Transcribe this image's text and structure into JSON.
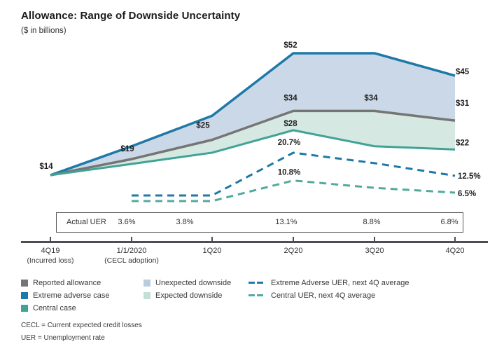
{
  "title": "Allowance: Range of Downside Uncertainty",
  "subtitle": "($ in billions)",
  "colors": {
    "extreme_adverse": "#1e79a7",
    "reported": "#757575",
    "central": "#3fa396",
    "central_uer_dash": "#52a99d",
    "unexpected_fill": "#cbd8e8",
    "expected_fill": "#d6e8e2",
    "axis": "#4d4e53",
    "label_text": "#1f1f1f"
  },
  "chart_data": {
    "type": "area",
    "title": "Allowance: Range of Downside Uncertainty",
    "ylabel": "$ in billions",
    "grid": false,
    "legend_position": "bottom",
    "categories": [
      "4Q19",
      "1/1/2020",
      "1Q20",
      "2Q20",
      "3Q20",
      "4Q20"
    ],
    "series": [
      {
        "id": "extreme_adverse_case",
        "name": "Extreme adverse case",
        "type": "line",
        "line": "solid",
        "unit": "billions_usd",
        "color": "#1e79a7",
        "values": [
          14,
          23,
          32.5,
          52,
          52,
          45
        ],
        "point_labels": [
          null,
          null,
          null,
          "$52",
          null,
          "$45"
        ]
      },
      {
        "id": "reported_allowance",
        "name": "Reported allowance",
        "type": "line",
        "line": "solid",
        "unit": "billions_usd",
        "color": "#757575",
        "values": [
          14,
          19,
          25,
          34,
          34,
          31
        ],
        "point_labels": [
          "$14",
          "$19",
          "$25",
          "$34",
          "$34",
          "$31"
        ]
      },
      {
        "id": "central_case",
        "name": "Central case",
        "type": "line",
        "line": "solid",
        "unit": "billions_usd",
        "color": "#3fa396",
        "values": [
          14,
          17.5,
          21,
          28,
          23,
          22
        ],
        "point_labels": [
          null,
          null,
          null,
          "$28",
          null,
          "$22"
        ]
      },
      {
        "id": "extreme_adverse_uer",
        "name": "Extreme Adverse UER, next 4Q average",
        "type": "line",
        "line": "dashed",
        "unit": "percent",
        "color": "#1e79a7",
        "values": [
          null,
          5.5,
          5.5,
          20.7,
          17,
          12.5
        ],
        "point_labels": [
          null,
          null,
          null,
          "20.7%",
          null,
          "12.5%"
        ]
      },
      {
        "id": "central_uer",
        "name": "Central UER, next 4Q average",
        "type": "line",
        "line": "dashed",
        "unit": "percent",
        "color": "#52a99d",
        "values": [
          null,
          3.5,
          3.5,
          10.8,
          8.2,
          6.5
        ],
        "point_labels": [
          null,
          null,
          null,
          "10.8%",
          null,
          "6.5%"
        ]
      }
    ],
    "bands": [
      {
        "id": "unexpected_downside",
        "name": "Unexpected downside",
        "upper": "extreme_adverse_case",
        "lower": "reported_allowance",
        "color": "#cbd8e8"
      },
      {
        "id": "expected_downside",
        "name": "Expected downside",
        "upper": "reported_allowance",
        "lower": "central_case",
        "color": "#d6e8e2"
      }
    ]
  },
  "uer_table": {
    "label": "Actual UER",
    "values": [
      "3.6%",
      "3.8%",
      "13.1%",
      "8.8%",
      "6.8%"
    ]
  },
  "axis_labels": [
    {
      "q": "4Q19",
      "note": "(Incurred loss)"
    },
    {
      "q": "1/1/2020",
      "note": "(CECL adoption)"
    },
    {
      "q": "1Q20",
      "note": ""
    },
    {
      "q": "2Q20",
      "note": ""
    },
    {
      "q": "3Q20",
      "note": ""
    },
    {
      "q": "4Q20",
      "note": ""
    }
  ],
  "legend": {
    "reported_allowance": "Reported allowance",
    "extreme_adverse_case": "Extreme adverse case",
    "central_case": "Central case",
    "unexpected_downside": "Unexpected downside",
    "expected_downside": "Expected downside",
    "extreme_adverse_uer": "Extreme Adverse UER, next 4Q average",
    "central_uer": "Central UER, next 4Q average"
  },
  "footnotes": [
    "CECL = Current expected credit losses",
    "UER = Unemployment rate"
  ]
}
